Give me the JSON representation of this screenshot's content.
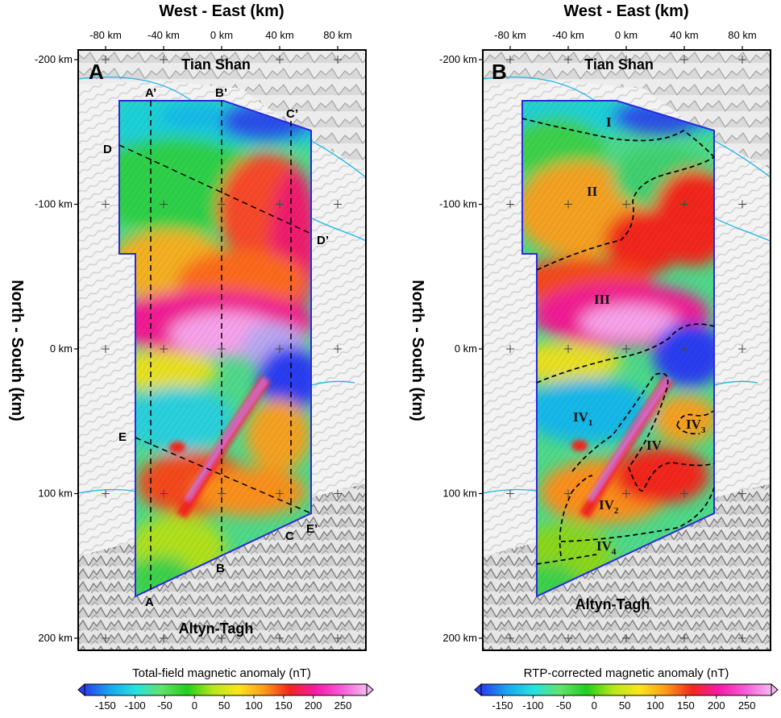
{
  "axis_labels": {
    "x_title": "West - East (km)",
    "y_title": "North - South (km)"
  },
  "x_ticks": [
    "-80 km",
    "-40 km",
    "0 km",
    "40 km",
    "80 km"
  ],
  "y_ticks": [
    "-200 km",
    "-100 km",
    "0 km",
    "100 km",
    "200 km"
  ],
  "places": {
    "north": "Tian Shan",
    "south": "Altyn-Tagh"
  },
  "panels": [
    {
      "label": "A",
      "colorbar_label": "Total-field magnetic anomaly (nT)",
      "profiles": [
        "A",
        "A’",
        "B",
        "B’",
        "C",
        "C’",
        "D",
        "D’",
        "E",
        "E’"
      ]
    },
    {
      "label": "B",
      "colorbar_label": "RTP-corrected magnetic anomaly (nT)",
      "zones": [
        {
          "base": "I",
          "sub": ""
        },
        {
          "base": "II",
          "sub": ""
        },
        {
          "base": "III",
          "sub": ""
        },
        {
          "base": "IV",
          "sub": "1"
        },
        {
          "base": "IV",
          "sub": ""
        },
        {
          "base": "IV",
          "sub": "3"
        },
        {
          "base": "IV",
          "sub": "2"
        },
        {
          "base": "IV",
          "sub": "4"
        }
      ]
    }
  ],
  "colorbar": {
    "ticks": [
      "-150",
      "-100",
      "-50",
      "0",
      "50",
      "100",
      "150",
      "200",
      "250"
    ],
    "range_nT": [
      -185,
      290
    ],
    "colors": [
      "#2a3ef0",
      "#18a8ee",
      "#27e2df",
      "#62e26a",
      "#21cf1f",
      "#b7e61c",
      "#fbe61b",
      "#fb9b1b",
      "#f1261e",
      "#f71aa8",
      "#f55ad6",
      "#f6b8f0"
    ]
  }
}
